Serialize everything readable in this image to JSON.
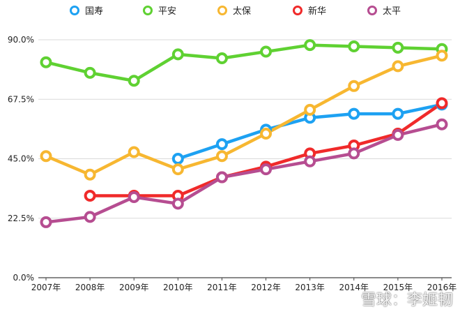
{
  "chart_data": {
    "type": "line",
    "title": "",
    "xlabel": "",
    "ylabel": "",
    "categories": [
      "2007年",
      "2008年",
      "2009年",
      "2010年",
      "2011年",
      "2012年",
      "2013年",
      "2014年",
      "2015年",
      "2016年"
    ],
    "ylim": [
      0,
      90
    ],
    "yticks": [
      0,
      22.5,
      45,
      67.5,
      90
    ],
    "ytick_labels": [
      "0.0%",
      "22.5%",
      "45.0%",
      "67.5%",
      "90.0%"
    ],
    "legend_position": "top",
    "grid": "horizontal",
    "series": [
      {
        "name": "国寿",
        "color": "#1da1f2",
        "values": [
          null,
          null,
          null,
          45.0,
          50.5,
          56.0,
          60.5,
          62.0,
          62.0,
          65.5
        ]
      },
      {
        "name": "平安",
        "color": "#5fd132",
        "values": [
          81.5,
          77.5,
          74.5,
          84.5,
          83.0,
          85.5,
          88.0,
          87.5,
          87.0,
          86.5
        ]
      },
      {
        "name": "太保",
        "color": "#f7b731",
        "values": [
          46.0,
          39.0,
          47.5,
          41.0,
          46.0,
          54.5,
          63.5,
          72.5,
          80.0,
          84.0
        ]
      },
      {
        "name": "新华",
        "color": "#f02a2a",
        "values": [
          null,
          31.0,
          31.0,
          31.0,
          38.0,
          42.0,
          47.0,
          50.0,
          54.5,
          66.0
        ]
      },
      {
        "name": "太平",
        "color": "#b64d91",
        "values": [
          21.0,
          23.0,
          30.5,
          28.0,
          38.0,
          41.0,
          44.0,
          47.0,
          54.0,
          58.0
        ]
      }
    ]
  },
  "watermark": "雪球：李姬韧"
}
